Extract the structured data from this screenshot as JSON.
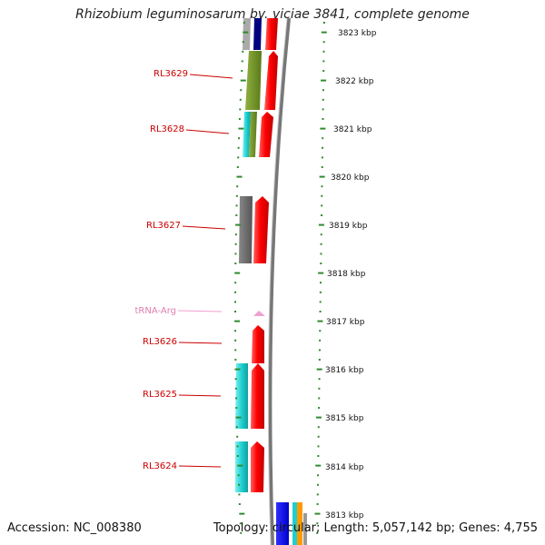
{
  "title": "Rhizobium leguminosarum bv. viciae 3841, complete genome",
  "footer": {
    "accession": "Accession: NC_008380",
    "topology": "Topology: circular; Length: 5,057,142 bp; Genes: 4,755"
  },
  "colors": {
    "cds": "#ff0000",
    "trna": "#f0a0d0",
    "gene_label": "#cc0000",
    "trna_label": "#e080b0",
    "tick": "#2e8b2e",
    "cog_olive": "#6b8e23",
    "cog_cyan": "#1fcfcf",
    "cog_gray": "#666666",
    "cog_navy": "#000080",
    "cog_blue": "#0000ee",
    "cog_orange": "#ff9900"
  },
  "gene_labels": [
    "RL3629",
    "RL3628",
    "RL3627",
    "tRNA-Arg",
    "RL3626",
    "RL3625",
    "RL3624"
  ],
  "kbp_scale": [
    "3823 kbp",
    "3822 kbp",
    "3821 kbp",
    "3820 kbp",
    "3819 kbp",
    "3818 kbp",
    "3817 kbp",
    "3816 kbp",
    "3815 kbp",
    "3814 kbp",
    "3813 kbp"
  ]
}
